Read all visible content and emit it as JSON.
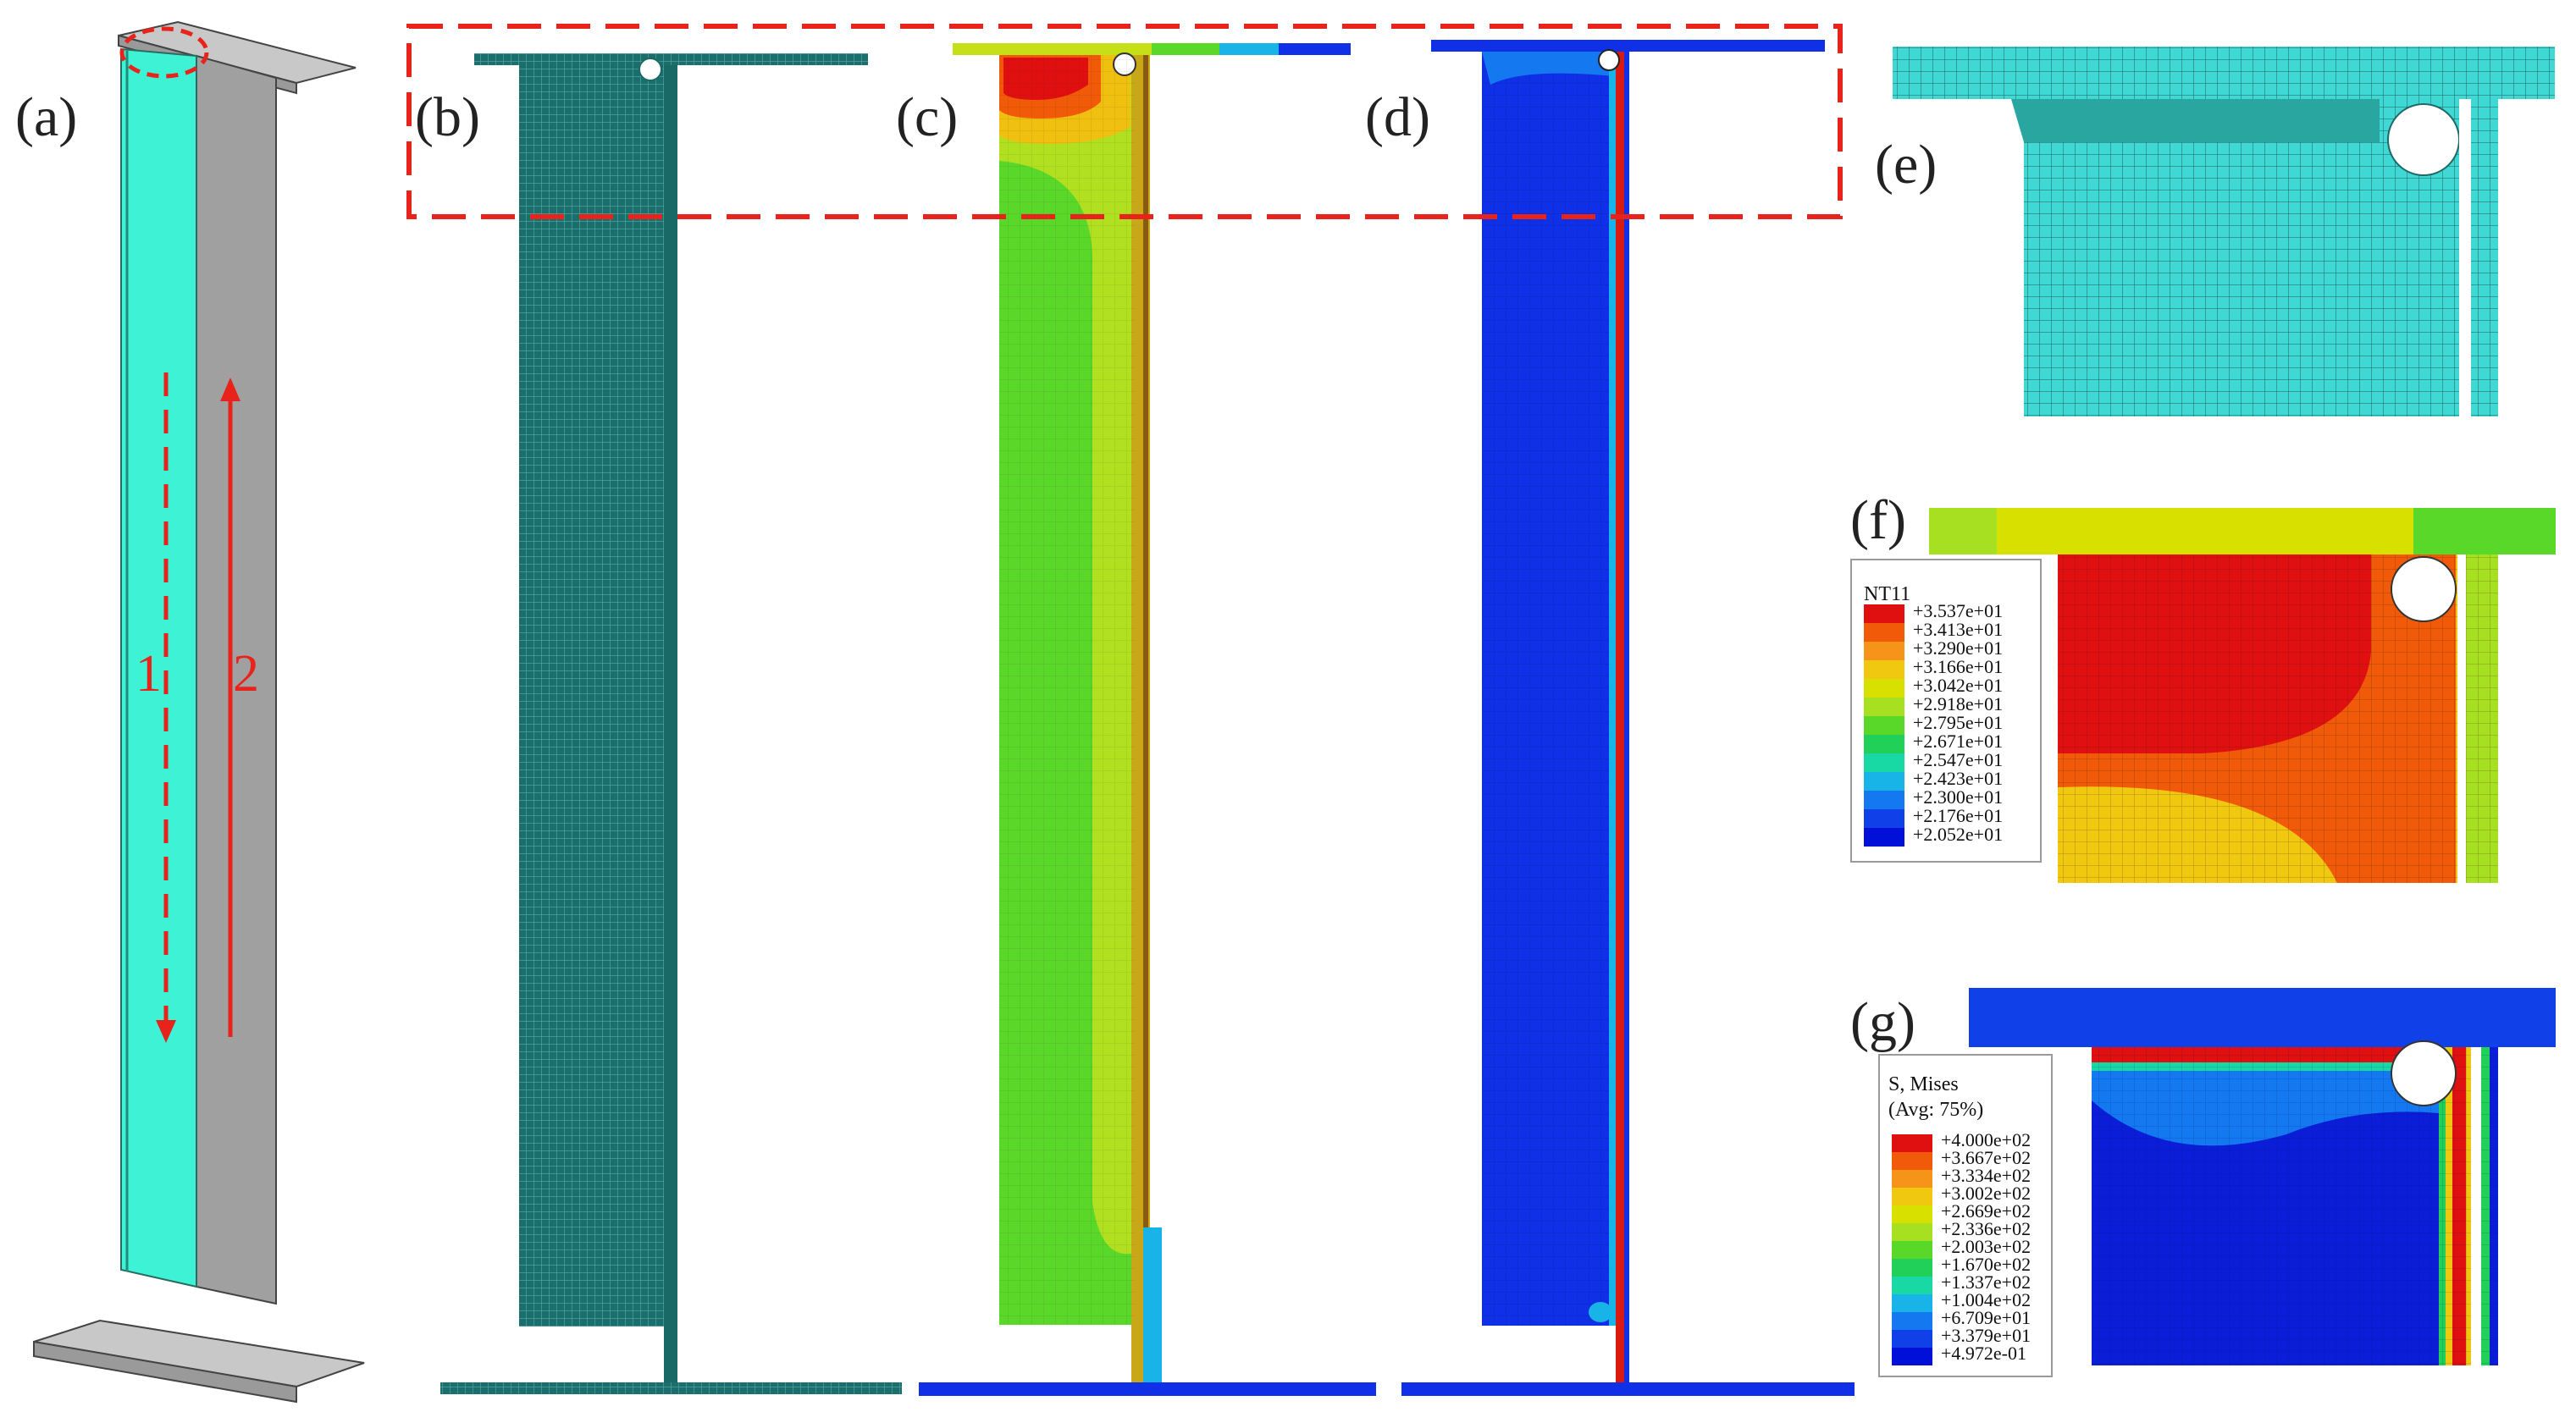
{
  "panels": {
    "a": "(a)",
    "b": "(b)",
    "c": "(c)",
    "d": "(d)",
    "e": "(e)",
    "f": "(f)",
    "g": "(g)"
  },
  "annotations": {
    "path1": "1",
    "path2": "2"
  },
  "colors": {
    "accent_red": "#e8231c",
    "mesh_teal": "#1f7a78",
    "web_cyan": "#3cf0d2",
    "flange_gray": "#a8a8a8",
    "abaqus_blue": "#0a1ee0",
    "zoom_cyan": "#40d8d4"
  },
  "legend_f": {
    "title": "NT11",
    "values": [
      "+3.537e+01",
      "+3.413e+01",
      "+3.290e+01",
      "+3.166e+01",
      "+3.042e+01",
      "+2.918e+01",
      "+2.795e+01",
      "+2.671e+01",
      "+2.547e+01",
      "+2.423e+01",
      "+2.300e+01",
      "+2.176e+01",
      "+2.052e+01"
    ]
  },
  "legend_g": {
    "title": "S, Mises",
    "subtitle": "(Avg: 75%)",
    "values": [
      "+4.000e+02",
      "+3.667e+02",
      "+3.334e+02",
      "+3.002e+02",
      "+2.669e+02",
      "+2.336e+02",
      "+2.003e+02",
      "+1.670e+02",
      "+1.337e+02",
      "+1.004e+02",
      "+6.709e+01",
      "+3.379e+01",
      "+4.972e-01"
    ]
  },
  "scale_colors": [
    "#e01010",
    "#f05a08",
    "#f59418",
    "#f0c810",
    "#d8e000",
    "#a6e020",
    "#5ad82a",
    "#20d058",
    "#18d8a4",
    "#18b4e8",
    "#1478f0",
    "#1040e8",
    "#0010d8"
  ]
}
